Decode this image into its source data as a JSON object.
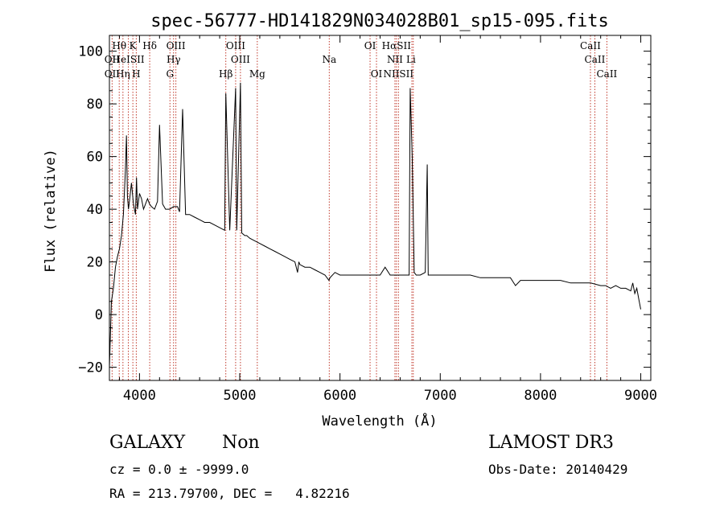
{
  "chart_data": {
    "type": "line",
    "title": "spec-56777-HD141829N034028B01_sp15-095.fits",
    "xlabel": "Wavelength (Å)",
    "ylabel": "Flux (relative)",
    "xlim": [
      3700,
      9100
    ],
    "ylim": [
      -25,
      106
    ],
    "x_ticks": [
      4000,
      5000,
      6000,
      7000,
      8000,
      9000
    ],
    "y_ticks": [
      -20,
      0,
      20,
      40,
      60,
      80,
      100
    ],
    "grid": false,
    "series": [
      {
        "x": [
          3700,
          3720,
          3740,
          3760,
          3780,
          3800,
          3820,
          3840,
          3860,
          3870,
          3880,
          3890,
          3900,
          3920,
          3940,
          3960,
          3970,
          3980,
          4000,
          4020,
          4040,
          4060,
          4080,
          4100,
          4120,
          4150,
          4180,
          4200,
          4230,
          4260,
          4300,
          4340,
          4380,
          4400,
          4430,
          4460,
          4500,
          4550,
          4600,
          4650,
          4700,
          4750,
          4800,
          4850,
          4861,
          4900,
          4959,
          4970,
          5007,
          5020,
          5050,
          5070,
          5100,
          5150,
          5200,
          5250,
          5300,
          5350,
          5400,
          5450,
          5500,
          5550,
          5577,
          5590,
          5600,
          5650,
          5700,
          5750,
          5800,
          5850,
          5890,
          5900,
          5950,
          6000,
          6050,
          6100,
          6150,
          6200,
          6250,
          6300,
          6350,
          6400,
          6450,
          6500,
          6550,
          6600,
          6650,
          6690,
          6700,
          6720,
          6740,
          6760,
          6800,
          6850,
          6870,
          6880,
          6900,
          6950,
          7000,
          7100,
          7200,
          7300,
          7400,
          7500,
          7600,
          7700,
          7750,
          7800,
          7900,
          8000,
          8100,
          8200,
          8300,
          8400,
          8500,
          8600,
          8650,
          8700,
          8750,
          8800,
          8850,
          8900,
          8920,
          8940,
          8960,
          8980,
          9000
        ],
        "y": [
          -20,
          5,
          10,
          18,
          22,
          25,
          30,
          38,
          55,
          68,
          45,
          40,
          43,
          50,
          42,
          38,
          52,
          40,
          46,
          44,
          40,
          42,
          44,
          42,
          41,
          40,
          43,
          72,
          42,
          40,
          40,
          41,
          41,
          39,
          78,
          38,
          38,
          37,
          36,
          35,
          35,
          34,
          33,
          32,
          84,
          32,
          86,
          32,
          88,
          31,
          30,
          30,
          29,
          28,
          27,
          26,
          25,
          24,
          23,
          22,
          21,
          20,
          16,
          20,
          19,
          18,
          18,
          17,
          16,
          15,
          13,
          14,
          16,
          15,
          15,
          15,
          15,
          15,
          15,
          15,
          15,
          15,
          18,
          15,
          15,
          15,
          15,
          15,
          86,
          60,
          16,
          15,
          15,
          16,
          57,
          15,
          15,
          15,
          15,
          15,
          15,
          15,
          14,
          14,
          14,
          14,
          11,
          13,
          13,
          13,
          13,
          13,
          12,
          12,
          12,
          11,
          11,
          10,
          11,
          10,
          10,
          9,
          12,
          8,
          10,
          6,
          2
        ]
      }
    ],
    "lines_top": [
      {
        "label": "Hθ",
        "x": 3798
      },
      {
        "label": "K",
        "x": 3934
      },
      {
        "label": "Hδ",
        "x": 4102
      },
      {
        "label": "OIII",
        "x": 4363
      },
      {
        "label": "OIII",
        "x": 4959
      },
      {
        "label": "OI",
        "x": 6300
      },
      {
        "label": "HαSII",
        "x": 6563
      },
      {
        "label": "CaII",
        "x": 8498
      }
    ],
    "lines_mid": [
      {
        "label": "OII",
        "x": 3727
      },
      {
        "label": "HeISII",
        "x": 3889
      },
      {
        "label": "Hγ",
        "x": 4340
      },
      {
        "label": "OIII",
        "x": 5007
      },
      {
        "label": "Na",
        "x": 5893
      },
      {
        "label": "NII",
        "x": 6548
      },
      {
        "label": "Li",
        "x": 6708
      },
      {
        "label": "CaII",
        "x": 8542
      }
    ],
    "lines_bot": [
      {
        "label": "OII",
        "x": 3727
      },
      {
        "label": "Hη",
        "x": 3835
      },
      {
        "label": "H",
        "x": 3968
      },
      {
        "label": "G",
        "x": 4304
      },
      {
        "label": "Hβ",
        "x": 4861
      },
      {
        "label": "Mg",
        "x": 5175
      },
      {
        "label": "OI",
        "x": 6364
      },
      {
        "label": "NIISII",
        "x": 6583
      },
      {
        "label": "CaII",
        "x": 8662
      }
    ],
    "marker_lines": [
      3727,
      3798,
      3835,
      3889,
      3934,
      3968,
      4102,
      4304,
      4340,
      4363,
      4861,
      4959,
      5007,
      5175,
      5893,
      6300,
      6364,
      6548,
      6563,
      6583,
      6717,
      6731,
      8498,
      8542,
      8662
    ]
  },
  "info": {
    "class": "GALAXY",
    "subclass": "Non",
    "survey": "LAMOST DR3",
    "cz": "cz = 0.0 ± -9999.0",
    "obs_date": "Obs-Date: 20140429",
    "radec": "RA = 213.79700, DEC =   4.82216"
  }
}
